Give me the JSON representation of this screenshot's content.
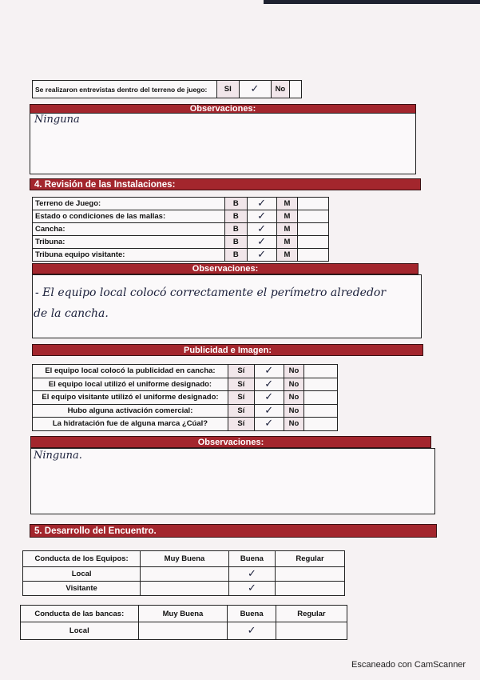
{
  "interview": {
    "label": "Se realizaron entrevistas dentro del terreno de juego:",
    "yes": "SI",
    "no": "No",
    "mark": "✓",
    "answer": "SI"
  },
  "observations_1": {
    "title": "Observaciones:",
    "text": "Ninguna"
  },
  "section4": {
    "title": "4. Revisión de las Instalaciones:",
    "good": "B",
    "bad": "M",
    "rows": [
      {
        "label": "Terreno de Juego:",
        "answer": "B",
        "mark": "✓"
      },
      {
        "label": "Estado o condiciones de las mallas:",
        "answer": "B",
        "mark": "✓"
      },
      {
        "label": "Cancha:",
        "answer": "B",
        "mark": "✓"
      },
      {
        "label": "Tribuna:",
        "answer": "B",
        "mark": "✓"
      },
      {
        "label": "Tribuna equipo visitante:",
        "answer": "B",
        "mark": "✓"
      }
    ]
  },
  "observations_2": {
    "title": "Observaciones:",
    "line1": "- El equipo local colocó correctamente el perímetro alrededor",
    "line2": "de la cancha."
  },
  "publicidad": {
    "title": "Publicidad e Imagen:",
    "yes": "Sí",
    "no": "No",
    "rows": [
      {
        "label": "El equipo local colocó la publicidad en cancha:",
        "answer": "Sí",
        "mark": "✓"
      },
      {
        "label": "El equipo local utilizó el uniforme designado:",
        "answer": "Sí",
        "mark": "✓"
      },
      {
        "label": "El equipo visitante utilizó el uniforme designado:",
        "answer": "Sí",
        "mark": "✓"
      },
      {
        "label": "Hubo alguna activación comercial:",
        "answer": "Sí",
        "mark": "✓"
      },
      {
        "label": "La hidratación fue de alguna marca ¿Cúal?",
        "answer": "Sí",
        "mark": "✓"
      }
    ]
  },
  "observations_3": {
    "title": "Observaciones:",
    "text": "Ninguna."
  },
  "section5": {
    "title": "5. Desarrollo del Encuentro.",
    "teams": {
      "headers": [
        "Conducta de los Equipos:",
        "Muy Buena",
        "Buena",
        "Regular"
      ],
      "rows": [
        {
          "label": "Local",
          "answer": "Buena",
          "mark": "✓"
        },
        {
          "label": "Visitante",
          "answer": "Buena",
          "mark": "✓"
        }
      ]
    },
    "benches": {
      "headers": [
        "Conducta de las bancas:",
        "Muy Buena",
        "Buena",
        "Regular"
      ],
      "rows": [
        {
          "label": "Local",
          "answer": "Buena",
          "mark": "✓"
        }
      ]
    }
  },
  "footer": "Escaneado con CamScanner",
  "colors": {
    "header": "#a3262d",
    "ink": "#1a1f3a"
  }
}
